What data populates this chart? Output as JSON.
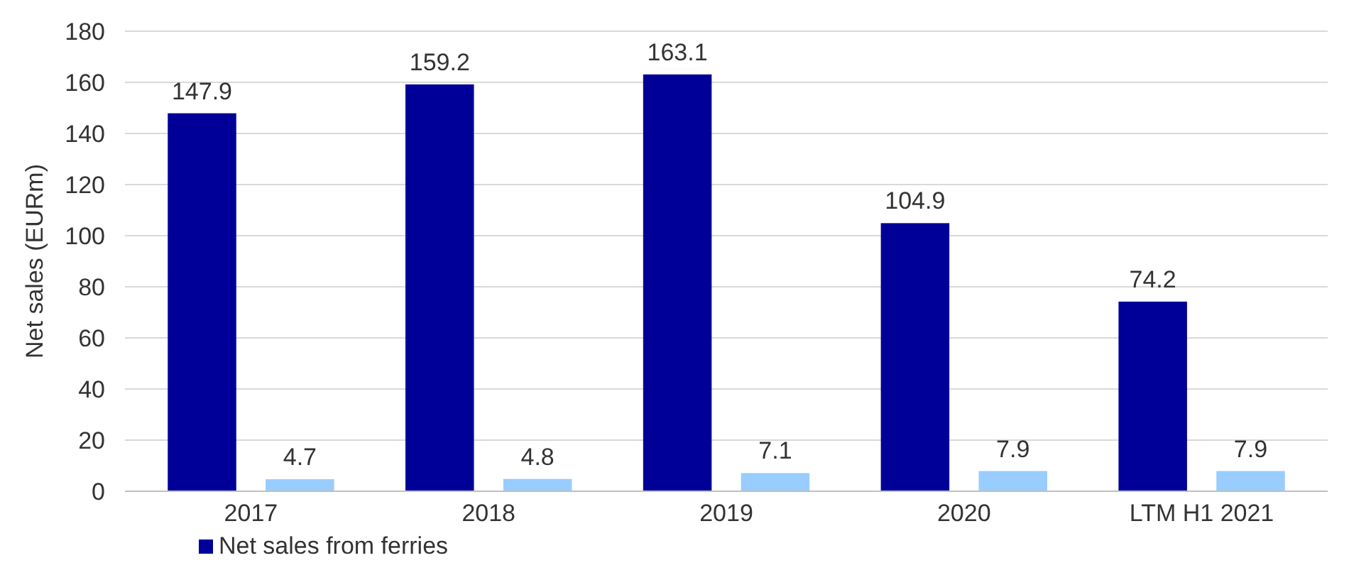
{
  "chart_data": {
    "type": "bar",
    "ylabel": "Net sales (EURm)",
    "categories": [
      "2017",
      "2018",
      "2019",
      "2020",
      "LTM H1 2021"
    ],
    "series": [
      {
        "name": "Net sales from ferries",
        "color": "#000099",
        "values": [
          147.9,
          159.2,
          163.1,
          104.9,
          74.2
        ]
      },
      {
        "color": "#99ccff",
        "values": [
          4.7,
          4.8,
          7.1,
          7.9,
          7.9
        ]
      }
    ],
    "ylim": [
      0,
      180
    ],
    "yticks": [
      0,
      20,
      40,
      60,
      80,
      100,
      120,
      140,
      160,
      180
    ],
    "grid": "y",
    "legend": "bottom",
    "data_labels": true
  }
}
